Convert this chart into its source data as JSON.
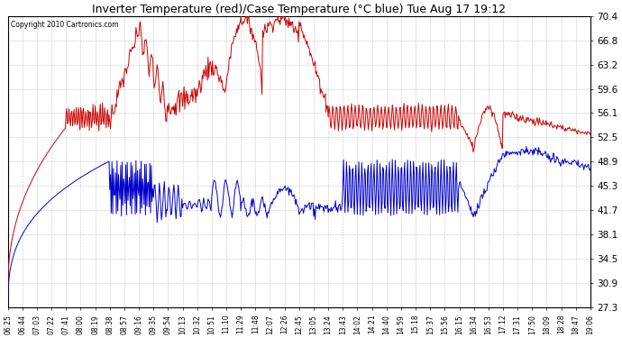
{
  "title": "Inverter Temperature (red)/Case Temperature (°C blue) Tue Aug 17 19:12",
  "copyright": "Copyright 2010 Cartronics.com",
  "ylim": [
    27.3,
    70.4
  ],
  "yticks": [
    27.3,
    30.9,
    34.5,
    38.1,
    41.7,
    45.3,
    48.9,
    52.5,
    56.1,
    59.6,
    63.2,
    66.8,
    70.4
  ],
  "red_color": "#cc0000",
  "blue_color": "#0000cc",
  "bg_color": "#ffffff",
  "grid_color": "#888888",
  "x_labels": [
    "06:25",
    "06:44",
    "07:03",
    "07:22",
    "07:41",
    "08:00",
    "08:19",
    "08:38",
    "08:57",
    "09:16",
    "09:35",
    "09:54",
    "10:13",
    "10:32",
    "10:51",
    "11:10",
    "11:29",
    "11:48",
    "12:07",
    "12:26",
    "12:45",
    "13:05",
    "13:24",
    "13:43",
    "14:02",
    "14:21",
    "14:40",
    "14:59",
    "15:18",
    "15:37",
    "15:56",
    "16:15",
    "16:34",
    "16:53",
    "17:12",
    "17:31",
    "17:50",
    "18:09",
    "18:28",
    "18:47",
    "19:06"
  ]
}
